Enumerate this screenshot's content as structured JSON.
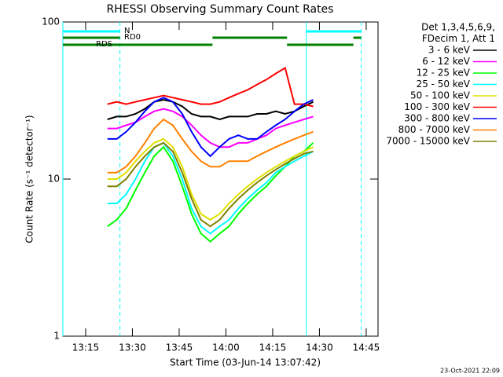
{
  "chart_data": {
    "type": "line",
    "title": "RHESSI Observing Summary Count Rates",
    "x_label": "Start Time (03-Jun-14 13:07:42)",
    "y_label": "Count Rate (s⁻¹ detector⁻¹)",
    "log_y": true,
    "xlim": [
      787.7,
      888.8
    ],
    "ylim": [
      1,
      100
    ],
    "xticks": [
      {
        "value": 795,
        "label": "13:15"
      },
      {
        "value": 810,
        "label": "13:30"
      },
      {
        "value": 825,
        "label": "13:45"
      },
      {
        "value": 840,
        "label": "14:00"
      },
      {
        "value": 855,
        "label": "14:15"
      },
      {
        "value": 870,
        "label": "14:30"
      },
      {
        "value": 885,
        "label": "14:45"
      }
    ],
    "yticks": [
      1,
      10,
      100
    ],
    "legend_header": [
      "Det 1,3,4,5,6,9,",
      "FDecim 1, Att 1"
    ],
    "legend_position": "right",
    "x": [
      802,
      805,
      808,
      811,
      814,
      817,
      820,
      823,
      826,
      829,
      832,
      835,
      838,
      841,
      844,
      847,
      850,
      853,
      856,
      859,
      862,
      865,
      868
    ],
    "series": [
      {
        "name": "3 - 6 keV",
        "color": "#000000",
        "values": [
          24,
          25,
          25,
          26,
          28,
          31,
          32,
          31,
          29,
          26,
          25,
          25,
          24,
          25,
          25,
          25,
          26,
          26,
          27,
          26,
          27,
          29,
          31
        ]
      },
      {
        "name": "6 - 12 keV",
        "color": "#ff00ff",
        "values": [
          21,
          21,
          22,
          23,
          25,
          27,
          28,
          27,
          25,
          22,
          19,
          17,
          16,
          16,
          17,
          17,
          18,
          19,
          21,
          22,
          23,
          24,
          25
        ]
      },
      {
        "name": "12 - 25 keV",
        "color": "#00ff00",
        "values": [
          5,
          5.5,
          6.5,
          8.5,
          11,
          14,
          16,
          13,
          9,
          6,
          4.5,
          4,
          4.5,
          5,
          6,
          7,
          8,
          9,
          10.5,
          12,
          14,
          15,
          17
        ]
      },
      {
        "name": "25 - 50 keV",
        "color": "#00ffff",
        "values": [
          7,
          7,
          8,
          10,
          13,
          16,
          17,
          14,
          10,
          6.5,
          5,
          4.5,
          5,
          5.5,
          6.5,
          7.5,
          8.5,
          9.5,
          11,
          12,
          13,
          14,
          15
        ]
      },
      {
        "name": "50 - 100 keV",
        "color": "#e0e000",
        "values": [
          10,
          10,
          11,
          13,
          15,
          17,
          18,
          16,
          12,
          8,
          6,
          5.5,
          6,
          7,
          8,
          9,
          10,
          11,
          12,
          13,
          14,
          15,
          16
        ]
      },
      {
        "name": "100 - 300 keV",
        "color": "#ff0000",
        "values": [
          30,
          31,
          30,
          31,
          32,
          33,
          34,
          33,
          32,
          31,
          30,
          30,
          31,
          33,
          35,
          37,
          40,
          43,
          47,
          51,
          30,
          30,
          29
        ]
      },
      {
        "name": "300 - 800 keV",
        "color": "#0000ff",
        "values": [
          18,
          18,
          20,
          23,
          27,
          31,
          33,
          31,
          26,
          20,
          16,
          14,
          16,
          18,
          19,
          18,
          18,
          20,
          22,
          24,
          27,
          30,
          32
        ]
      },
      {
        "name": "800 - 7000 keV",
        "color": "#ff8000",
        "values": [
          11,
          11,
          12,
          14,
          17,
          21,
          24,
          22,
          18,
          15,
          13,
          12,
          12,
          13,
          13,
          13,
          14,
          15,
          16,
          17,
          18,
          19,
          20
        ]
      },
      {
        "name": "7000 - 15000 keV",
        "color": "#808000",
        "values": [
          9,
          9,
          10,
          12,
          14,
          16,
          17,
          15,
          11,
          7.5,
          5.5,
          5,
          5.5,
          6.5,
          7.5,
          8.5,
          9.5,
          10.5,
          11.5,
          12.5,
          13.5,
          14.5,
          15
        ]
      }
    ],
    "flags": [
      {
        "label": "N",
        "color": "#00ffff",
        "intervals": [
          [
            787.7,
            806
          ],
          [
            865.8,
            883.4
          ]
        ]
      },
      {
        "label": "RD0",
        "color": "#008000",
        "intervals": [
          [
            787.7,
            806
          ],
          [
            835.7,
            859.6
          ],
          [
            880.9,
            883.4
          ]
        ]
      },
      {
        "label": "RDS",
        "color": "#008000",
        "intervals": [
          [
            787.7,
            835.7
          ],
          [
            859.6,
            880.9
          ]
        ]
      }
    ],
    "footer": "23-Oct-2021 22:09"
  }
}
